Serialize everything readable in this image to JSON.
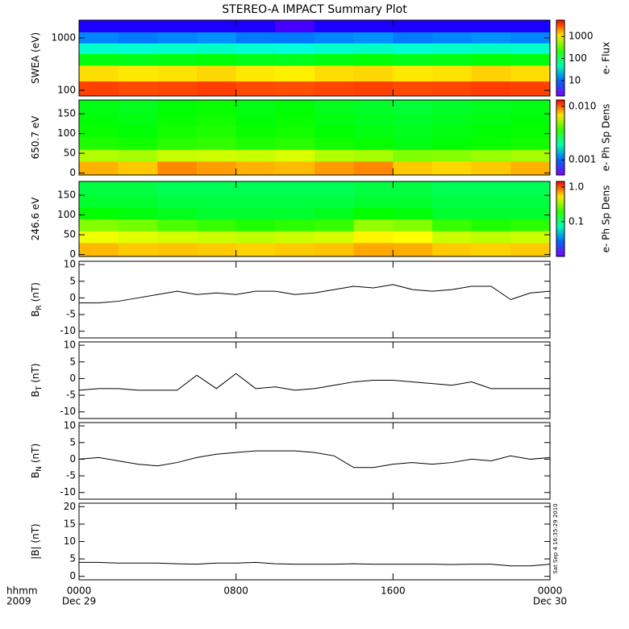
{
  "title": "STEREO-A IMPACT Summary Plot",
  "x_axis": {
    "xlim": [
      0,
      24
    ],
    "xticks": [
      {
        "value": 0,
        "label": "0000"
      },
      {
        "value": 8,
        "label": "0800"
      },
      {
        "value": 16,
        "label": "1600"
      },
      {
        "value": 24,
        "label": "0000"
      }
    ],
    "date_labels": [
      {
        "value": 0,
        "label": "Dec 29"
      },
      {
        "value": 24,
        "label": "Dec 30"
      }
    ],
    "row_labels": [
      "hhmm",
      "2009"
    ]
  },
  "chart_data": [
    {
      "type": "heatmap",
      "ylabel": "SWEA (eV)",
      "log_y": true,
      "ylim": [
        78,
        2180
      ],
      "yticks": [
        100,
        1000
      ],
      "clabel": "e- Flux",
      "clim": [
        2,
        5500
      ],
      "cticks": [
        10,
        100,
        1000
      ],
      "x_edges": [
        0,
        2,
        4,
        6,
        8,
        10,
        12,
        14,
        16,
        18,
        20,
        22,
        24
      ],
      "y_edges": [
        78,
        150,
        300,
        500,
        800,
        1300,
        2180
      ],
      "z": [
        [
          3500,
          3300,
          3400,
          3600,
          3300,
          3200,
          3400,
          3500,
          3300,
          3400,
          3600,
          3500
        ],
        [
          1200,
          1100,
          1150,
          1250,
          1100,
          1050,
          1200,
          1250,
          1100,
          1150,
          1300,
          1200
        ],
        [
          150,
          140,
          150,
          160,
          140,
          135,
          150,
          160,
          140,
          145,
          160,
          150
        ],
        [
          40,
          38,
          40,
          42,
          38,
          36,
          40,
          42,
          38,
          40,
          42,
          40
        ],
        [
          12,
          11,
          12,
          13,
          11,
          11,
          12,
          13,
          11,
          12,
          13,
          12
        ],
        [
          4,
          4,
          4,
          4,
          4,
          3,
          4,
          4,
          4,
          4,
          4,
          4
        ]
      ]
    },
    {
      "type": "heatmap",
      "ylabel": "650.7 eV",
      "log_y": false,
      "ylim": [
        -5,
        185
      ],
      "yticks": [
        0,
        50,
        100,
        150
      ],
      "clabel": "e- Ph Sp Dens",
      "clim": [
        0.00052,
        0.0132
      ],
      "cticks": [
        0.001,
        {
          "value": 0.01,
          "label": "0.010"
        }
      ],
      "x_edges": [
        0,
        2,
        4,
        6,
        8,
        10,
        12,
        14,
        16,
        18,
        20,
        22,
        24
      ],
      "y_edges": [
        -5,
        30,
        60,
        90,
        120,
        150,
        185
      ],
      "z": [
        [
          0.008,
          0.0075,
          0.009,
          0.0085,
          0.008,
          0.0078,
          0.0085,
          0.009,
          0.0075,
          0.0072,
          0.0075,
          0.008
        ],
        [
          0.0052,
          0.005,
          0.0055,
          0.0056,
          0.0055,
          0.0058,
          0.0052,
          0.005,
          0.0045,
          0.0046,
          0.0048,
          0.005
        ],
        [
          0.0034,
          0.0033,
          0.0035,
          0.0036,
          0.0034,
          0.0035,
          0.0033,
          0.0032,
          0.003,
          0.0031,
          0.0032,
          0.0033
        ],
        [
          0.0032,
          0.0031,
          0.0033,
          0.0034,
          0.0032,
          0.0033,
          0.0031,
          0.003,
          0.0029,
          0.003,
          0.0031,
          0.0032
        ],
        [
          0.0031,
          0.003,
          0.0032,
          0.0033,
          0.0031,
          0.0032,
          0.003,
          0.0029,
          0.0028,
          0.0029,
          0.003,
          0.0031
        ],
        [
          0.003,
          0.0029,
          0.0031,
          0.0032,
          0.003,
          0.0031,
          0.0029,
          0.0028,
          0.0027,
          0.0028,
          0.0029,
          0.003
        ]
      ]
    },
    {
      "type": "heatmap",
      "ylabel": "246.6 eV",
      "log_y": false,
      "ylim": [
        -5,
        185
      ],
      "yticks": [
        0,
        50,
        100,
        150
      ],
      "clabel": "e- Ph Sp Dens",
      "clim": [
        0.01,
        1.45
      ],
      "cticks": [
        0.1,
        {
          "value": 1,
          "label": "1.0"
        }
      ],
      "x_edges": [
        0,
        2,
        4,
        6,
        8,
        10,
        12,
        14,
        16,
        18,
        20,
        22,
        24
      ],
      "y_edges": [
        -5,
        30,
        60,
        90,
        120,
        150,
        185
      ],
      "z": [
        [
          0.65,
          0.6,
          0.62,
          0.6,
          0.58,
          0.6,
          0.62,
          0.7,
          0.68,
          0.6,
          0.58,
          0.6
        ],
        [
          0.45,
          0.42,
          0.4,
          0.38,
          0.36,
          0.38,
          0.4,
          0.5,
          0.48,
          0.38,
          0.36,
          0.38
        ],
        [
          0.28,
          0.26,
          0.22,
          0.2,
          0.18,
          0.19,
          0.2,
          0.3,
          0.28,
          0.2,
          0.18,
          0.19
        ],
        [
          0.16,
          0.15,
          0.14,
          0.13,
          0.13,
          0.13,
          0.14,
          0.16,
          0.15,
          0.13,
          0.13,
          0.13
        ],
        [
          0.13,
          0.13,
          0.12,
          0.12,
          0.12,
          0.12,
          0.12,
          0.13,
          0.13,
          0.12,
          0.12,
          0.12
        ],
        [
          0.12,
          0.12,
          0.11,
          0.11,
          0.11,
          0.11,
          0.11,
          0.12,
          0.12,
          0.11,
          0.11,
          0.11
        ]
      ]
    },
    {
      "type": "line",
      "ylabel": "B",
      "ylabel_sub": "R",
      "ylabel_unit": "(nT)",
      "ylim": [
        -12,
        11
      ],
      "yticks": [
        -10,
        -5,
        0,
        5,
        10
      ],
      "color": "#000000",
      "x": [
        0,
        1,
        2,
        3,
        4,
        5,
        6,
        7,
        8,
        9,
        10,
        11,
        12,
        13,
        14,
        15,
        16,
        17,
        18,
        19,
        20,
        21,
        22,
        23,
        24
      ],
      "values": [
        -1.5,
        -1.5,
        -1,
        0,
        1,
        2,
        1,
        1.5,
        1,
        2,
        2,
        1,
        1.5,
        2.5,
        3.5,
        3,
        4,
        2.5,
        2,
        2.5,
        3.5,
        3.5,
        -0.5,
        1.5,
        2
      ]
    },
    {
      "type": "line",
      "ylabel": "B",
      "ylabel_sub": "T",
      "ylabel_unit": "(nT)",
      "ylim": [
        -12,
        11
      ],
      "yticks": [
        -10,
        -5,
        0,
        5,
        10
      ],
      "color": "#000000",
      "x": [
        0,
        1,
        2,
        3,
        4,
        5,
        6,
        7,
        8,
        9,
        10,
        11,
        12,
        13,
        14,
        15,
        16,
        17,
        18,
        19,
        20,
        21,
        22,
        23,
        24
      ],
      "values": [
        -3.5,
        -3,
        -3,
        -3.5,
        -3.5,
        -3.5,
        1,
        -3,
        1.5,
        -3,
        -2.5,
        -3.5,
        -3,
        -2,
        -1,
        -0.5,
        -0.5,
        -1,
        -1.5,
        -2,
        -1,
        -3,
        -3,
        -3,
        -3
      ]
    },
    {
      "type": "line",
      "ylabel": "B",
      "ylabel_sub": "N",
      "ylabel_unit": "(nT)",
      "ylim": [
        -12,
        11
      ],
      "yticks": [
        -10,
        -5,
        0,
        5,
        10
      ],
      "color": "#000000",
      "x": [
        0,
        1,
        2,
        3,
        4,
        5,
        6,
        7,
        8,
        9,
        10,
        11,
        12,
        13,
        14,
        15,
        16,
        17,
        18,
        19,
        20,
        21,
        22,
        23,
        24
      ],
      "values": [
        0,
        0.5,
        -0.5,
        -1.5,
        -2,
        -1,
        0.5,
        1.5,
        2,
        2.5,
        2.5,
        2.5,
        2,
        1,
        -2.5,
        -2.5,
        -1.5,
        -1,
        -1.5,
        -1,
        0,
        -0.5,
        1,
        0,
        0.5
      ]
    },
    {
      "type": "line",
      "ylabel": "|B| (nT)",
      "ylim": [
        -1,
        21
      ],
      "yticks": [
        0,
        5,
        10,
        15,
        20
      ],
      "color": "#000000",
      "annotation": "Sat Sep  4 16:35:29 2010",
      "x": [
        0,
        1,
        2,
        3,
        4,
        5,
        6,
        7,
        8,
        9,
        10,
        11,
        12,
        13,
        14,
        15,
        16,
        17,
        18,
        19,
        20,
        21,
        22,
        23,
        24
      ],
      "values": [
        4,
        4,
        3.8,
        3.8,
        3.8,
        3.6,
        3.5,
        3.8,
        3.8,
        4,
        3.6,
        3.5,
        3.5,
        3.5,
        3.6,
        3.5,
        3.5,
        3.5,
        3.5,
        3.4,
        3.5,
        3.5,
        3,
        3,
        3.5
      ]
    }
  ]
}
